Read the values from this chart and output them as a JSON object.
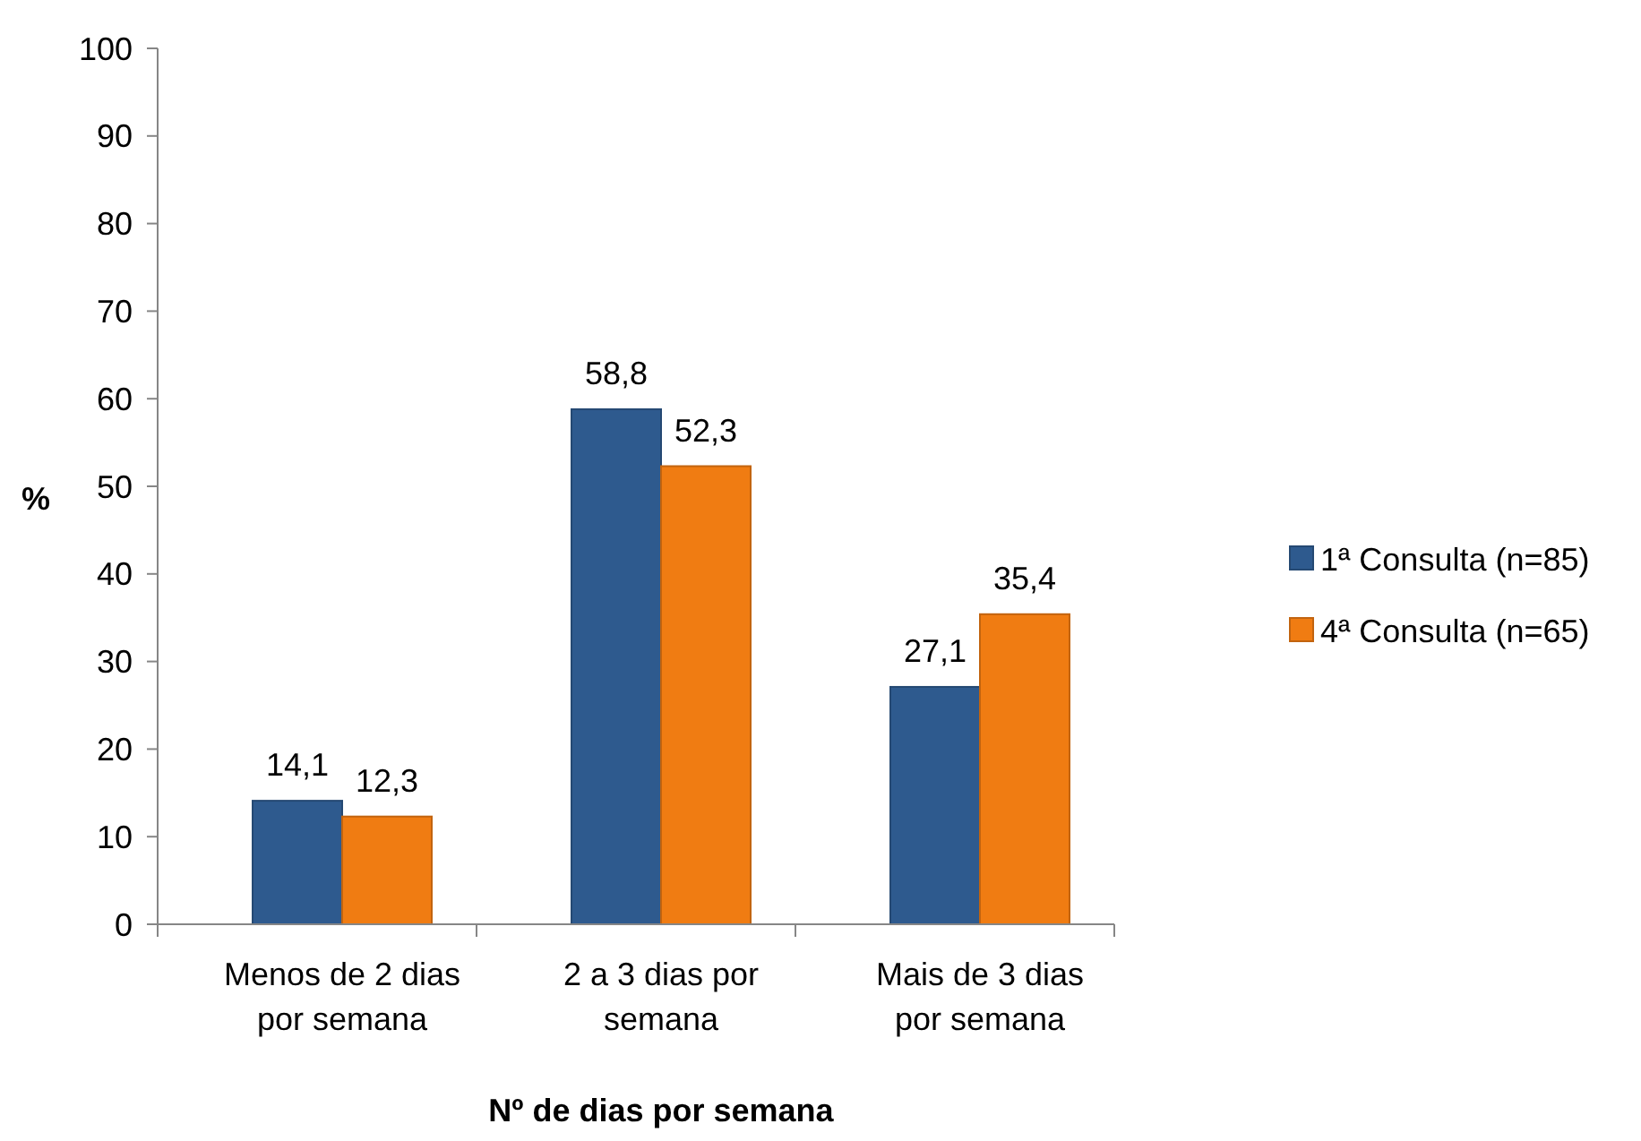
{
  "chart_data": {
    "type": "bar",
    "xlabel": "Nº de dias por semana",
    "ylabel": "%",
    "categories": [
      "Menos de 2 dias por semana",
      "2 a 3 dias por semana",
      "Mais de 3 dias por semana"
    ],
    "series": [
      {
        "name": "1ª Consulta (n=85)",
        "color": "#2e5a8e",
        "values": [
          14.1,
          58.8,
          27.1
        ],
        "value_labels": [
          "14,1",
          "58,8",
          "27,1"
        ]
      },
      {
        "name": "4ª Consulta (n=65)",
        "color": "#f07c12",
        "values": [
          12.3,
          52.3,
          35.4
        ],
        "value_labels": [
          "12,3",
          "52,3",
          "35,4"
        ]
      }
    ],
    "ylim": [
      0,
      100
    ],
    "yticks": [
      0,
      10,
      20,
      30,
      40,
      50,
      60,
      70,
      80,
      90,
      100
    ],
    "grid": false,
    "legend": "right"
  }
}
